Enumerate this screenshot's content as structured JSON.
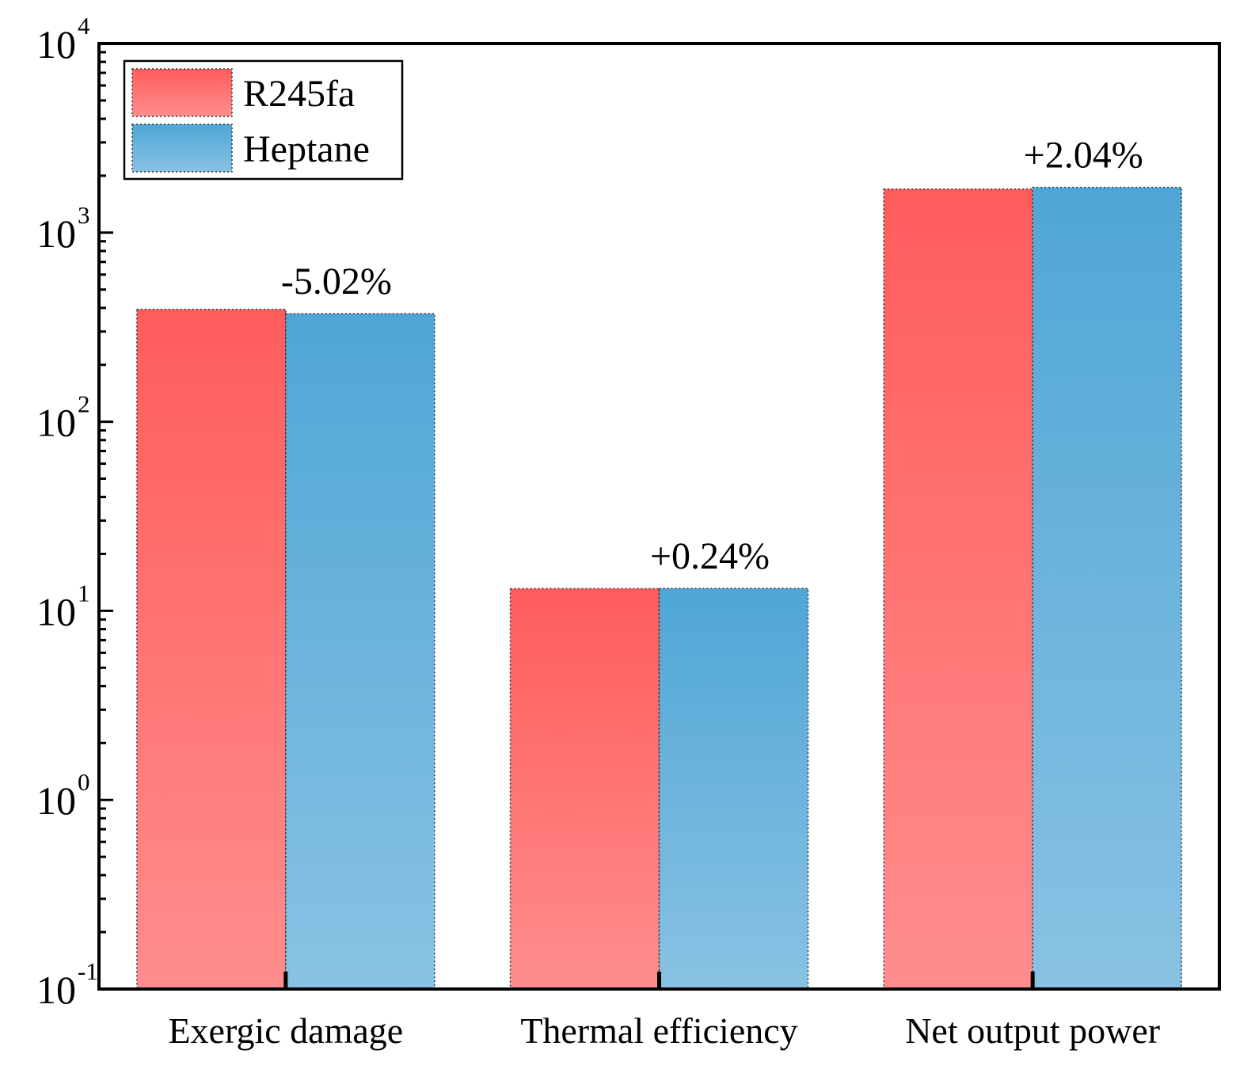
{
  "chart_data": {
    "type": "bar",
    "y_scale": "log",
    "ylim": [
      0.1,
      10000
    ],
    "y_ticks": [
      {
        "base": "10",
        "exp": "-1",
        "value": 0.1
      },
      {
        "base": "10",
        "exp": "0",
        "value": 1
      },
      {
        "base": "10",
        "exp": "1",
        "value": 10
      },
      {
        "base": "10",
        "exp": "2",
        "value": 100
      },
      {
        "base": "10",
        "exp": "3",
        "value": 1000
      },
      {
        "base": "10",
        "exp": "4",
        "value": 10000
      }
    ],
    "categories": [
      "Exergic damage",
      "Thermal efficiency",
      "Net output power"
    ],
    "series": [
      {
        "name": "R245fa",
        "values": [
          393,
          13.1,
          1700
        ]
      },
      {
        "name": "Heptane",
        "values": [
          373,
          13.13,
          1735
        ]
      }
    ],
    "annotations": [
      "-5.02%",
      "+0.24%",
      "+2.04%"
    ],
    "legend_position": "top-left",
    "grid": false,
    "colors": {
      "r245fa_top": "#ff5c5c",
      "r245fa_bottom": "#ff8d8d",
      "heptane_top": "#4fa6d6",
      "heptane_bottom": "#89c2e3"
    }
  }
}
